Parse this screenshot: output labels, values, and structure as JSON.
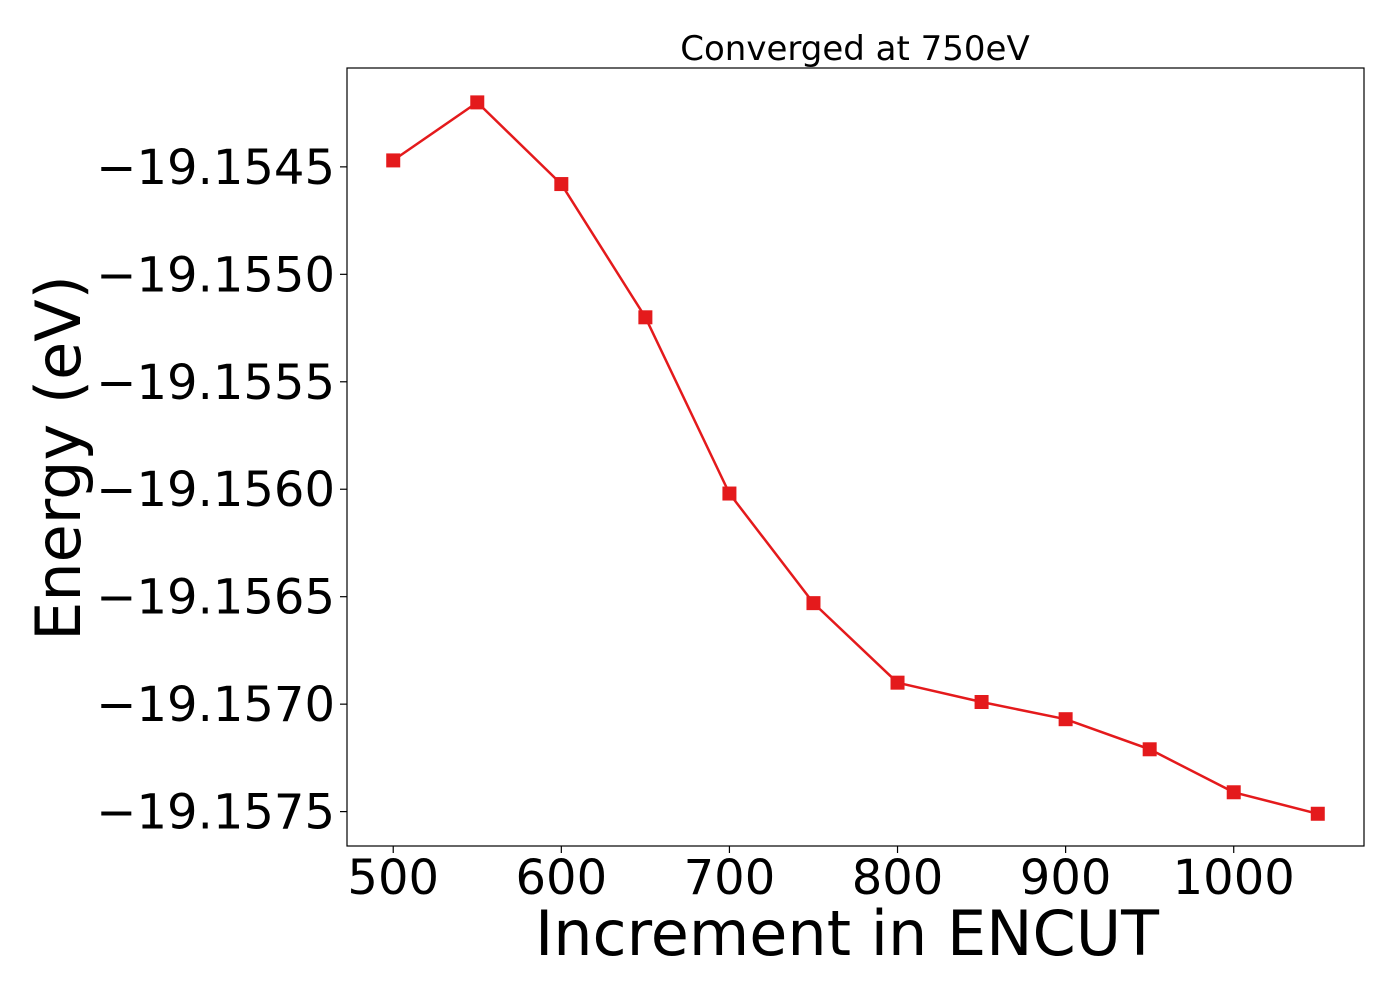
{
  "chart_data": {
    "type": "line",
    "title": "Converged at 750eV",
    "xlabel": "Increment in ENCUT",
    "ylabel": "Energy (eV)",
    "x": [
      500,
      550,
      600,
      650,
      700,
      750,
      800,
      850,
      900,
      950,
      1000,
      1050
    ],
    "series": [
      {
        "values": [
          -19.15447,
          -19.1542,
          -19.15458,
          -19.1552,
          -19.15602,
          -19.15653,
          -19.1569,
          -19.15699,
          -19.15707,
          -19.15721,
          -19.15741,
          -19.15751
        ],
        "color": "#e41a1c",
        "marker": "square"
      }
    ],
    "xticks": [
      500,
      600,
      700,
      800,
      900,
      1000
    ],
    "xtick_labels": [
      "500",
      "600",
      "700",
      "800",
      "900",
      "1000"
    ],
    "yticks": [
      -19.1545,
      -19.155,
      -19.1555,
      -19.156,
      -19.1565,
      -19.157,
      -19.1575
    ],
    "ytick_labels": [
      "−19.1545",
      "−19.1550",
      "−19.1555",
      "−19.1560",
      "−19.1565",
      "−19.1570",
      "−19.1575"
    ],
    "xlim": [
      472.5,
      1077.5
    ],
    "ylim": [
      -19.15766,
      -19.15404
    ],
    "grid": false,
    "legend": "none"
  }
}
